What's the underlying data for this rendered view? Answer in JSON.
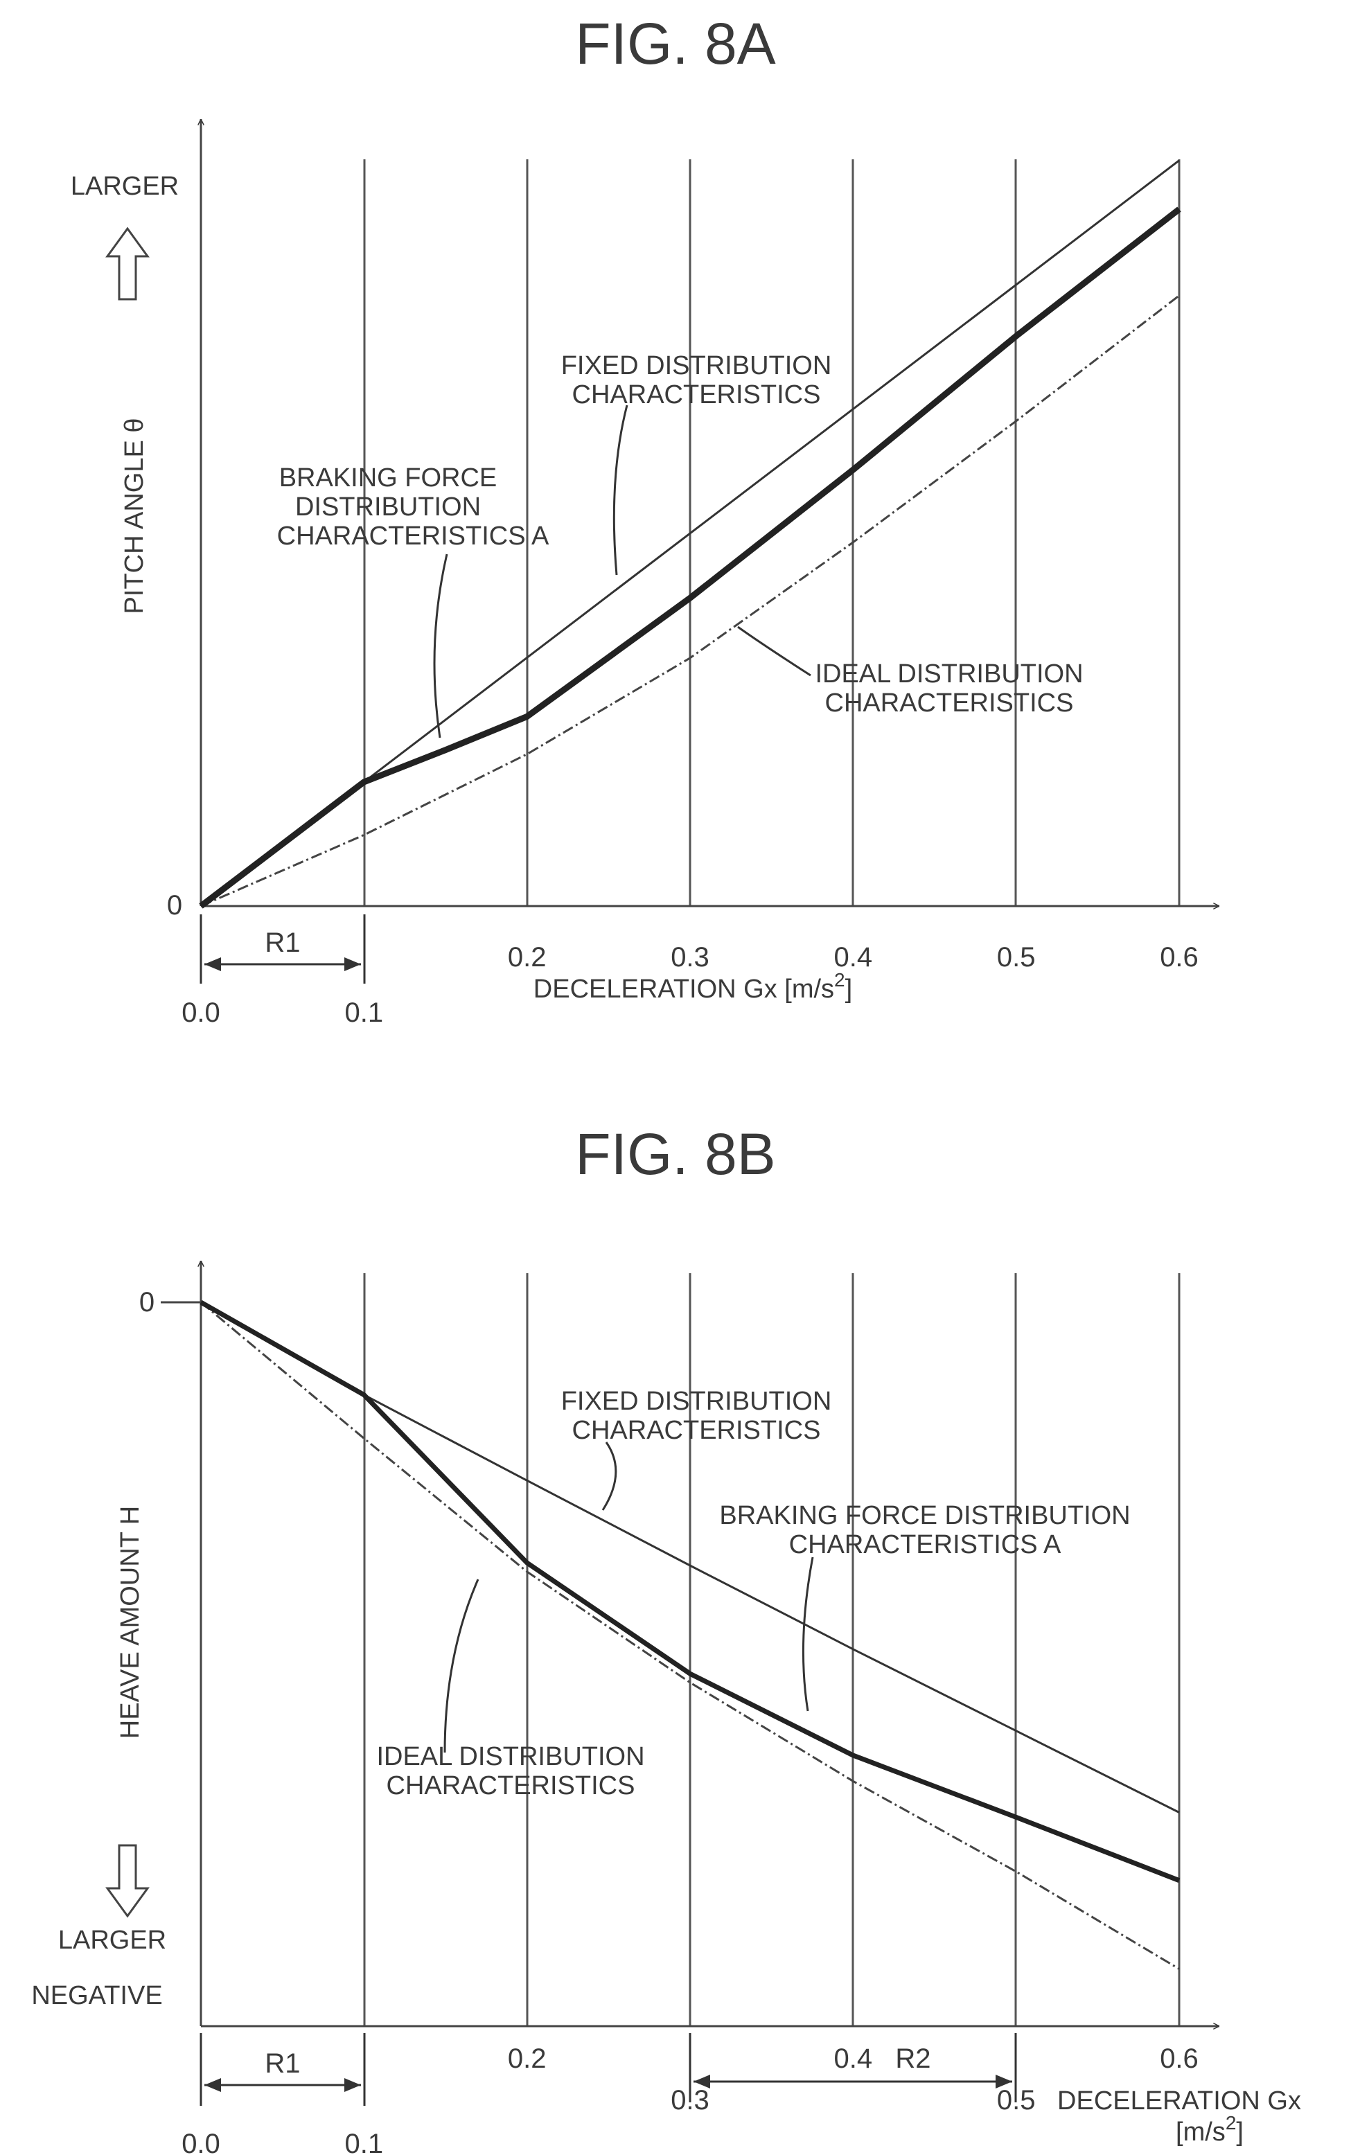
{
  "chart_data": [
    {
      "type": "line",
      "title": "FIG. 8A",
      "xlabel": "DECELERATION Gx [m/s2]",
      "xlabel_main": "DECELERATION Gx [m/s",
      "xlabel_sup": "2",
      "xlabel_end": "]",
      "ylabel": "PITCH ANGLE θ",
      "y_direction_label": "LARGER",
      "y_zero_label": "0",
      "xlim": [
        0,
        0.6
      ],
      "ylim": [
        0,
        1
      ],
      "grid_x": true,
      "ticks_x": [
        {
          "v": 0.0,
          "label": "0.0",
          "row": "low"
        },
        {
          "v": 0.1,
          "label": "0.1",
          "row": "low"
        },
        {
          "v": 0.2,
          "label": "0.2",
          "row": "high"
        },
        {
          "v": 0.3,
          "label": "0.3",
          "row": "high"
        },
        {
          "v": 0.4,
          "label": "0.4",
          "row": "high"
        },
        {
          "v": 0.5,
          "label": "0.5",
          "row": "high"
        },
        {
          "v": 0.6,
          "label": "0.6",
          "row": "high"
        }
      ],
      "ranges": [
        {
          "label": "R1",
          "from": 0.0,
          "to": 0.1
        }
      ],
      "series": [
        {
          "name": "FIXED DISTRIBUTION CHARACTERISTICS",
          "style": "thin",
          "x": [
            0.0,
            0.1,
            0.6
          ],
          "y": [
            0.0,
            0.178,
            1.07
          ]
        },
        {
          "name": "BRAKING FORCE DISTRIBUTION CHARACTERISTICS A",
          "style": "thick",
          "x": [
            0.0,
            0.1,
            0.15,
            0.2,
            0.3,
            0.4,
            0.5,
            0.6
          ],
          "y": [
            0.0,
            0.178,
            0.224,
            0.272,
            0.442,
            0.626,
            0.818,
            1.0
          ]
        },
        {
          "name": "IDEAL DISTRIBUTION CHARACTERISTICS",
          "style": "dash",
          "x": [
            0.0,
            0.1,
            0.2,
            0.3,
            0.4,
            0.5,
            0.6
          ],
          "y": [
            0.0,
            0.102,
            0.218,
            0.356,
            0.522,
            0.696,
            0.876
          ]
        }
      ],
      "annotations": [
        {
          "lines": [
            "FIXED DISTRIBUTION",
            "CHARACTERISTICS"
          ]
        },
        {
          "lines": [
            "BRAKING FORCE",
            "DISTRIBUTION",
            "CHARACTERISTICS A"
          ]
        },
        {
          "lines": [
            "IDEAL DISTRIBUTION",
            "CHARACTERISTICS"
          ]
        }
      ]
    },
    {
      "type": "line",
      "title": "FIG. 8B",
      "xlabel": "DECELERATION Gx [m/s2]",
      "xlabel_main": "DECELERATION Gx",
      "xlabel_unit_main": "[m/s",
      "xlabel_sup": "2",
      "xlabel_end": "]",
      "ylabel": "HEAVE AMOUNT H",
      "y_direction_label": [
        "LARGER",
        "NEGATIVE"
      ],
      "y_zero_label": "0",
      "xlim": [
        0,
        0.6
      ],
      "ylim": [
        -1,
        0
      ],
      "grid_x": true,
      "ticks_x": [
        {
          "v": 0.0,
          "label": "0.0",
          "row": "low"
        },
        {
          "v": 0.1,
          "label": "0.1",
          "row": "low"
        },
        {
          "v": 0.2,
          "label": "0.2",
          "row": "high"
        },
        {
          "v": 0.3,
          "label": "0.3",
          "row": "mid"
        },
        {
          "v": 0.4,
          "label": "0.4",
          "row": "high"
        },
        {
          "v": 0.5,
          "label": "0.5",
          "row": "mid"
        },
        {
          "v": 0.6,
          "label": "0.6",
          "row": "high"
        }
      ],
      "ranges": [
        {
          "label": "R1",
          "from": 0.0,
          "to": 0.1
        },
        {
          "label": "R2",
          "from": 0.3,
          "to": 0.5
        }
      ],
      "series": [
        {
          "name": "FIXED DISTRIBUTION CHARACTERISTICS",
          "style": "thin",
          "x": [
            0.0,
            0.1,
            0.2,
            0.3,
            0.4,
            0.5,
            0.6
          ],
          "y": [
            0.0,
            -0.136,
            -0.262,
            -0.387,
            -0.51,
            -0.63,
            -0.75
          ]
        },
        {
          "name": "BRAKING FORCE DISTRIBUTION CHARACTERISTICS A",
          "style": "thick",
          "x": [
            0.0,
            0.1,
            0.2,
            0.3,
            0.4,
            0.5,
            0.6
          ],
          "y": [
            0.0,
            -0.136,
            -0.383,
            -0.546,
            -0.666,
            -0.757,
            -0.85
          ]
        },
        {
          "name": "IDEAL DISTRIBUTION CHARACTERISTICS",
          "style": "dash",
          "x": [
            0.0,
            0.1,
            0.2,
            0.3,
            0.4,
            0.5,
            0.6
          ],
          "y": [
            0.0,
            -0.2,
            -0.396,
            -0.559,
            -0.704,
            -0.837,
            -0.98
          ]
        }
      ],
      "annotations": [
        {
          "lines": [
            "FIXED DISTRIBUTION",
            "CHARACTERISTICS"
          ]
        },
        {
          "lines": [
            "BRAKING FORCE DISTRIBUTION",
            "CHARACTERISTICS A"
          ]
        },
        {
          "lines": [
            "IDEAL DISTRIBUTION",
            "CHARACTERISTICS"
          ]
        }
      ]
    }
  ]
}
